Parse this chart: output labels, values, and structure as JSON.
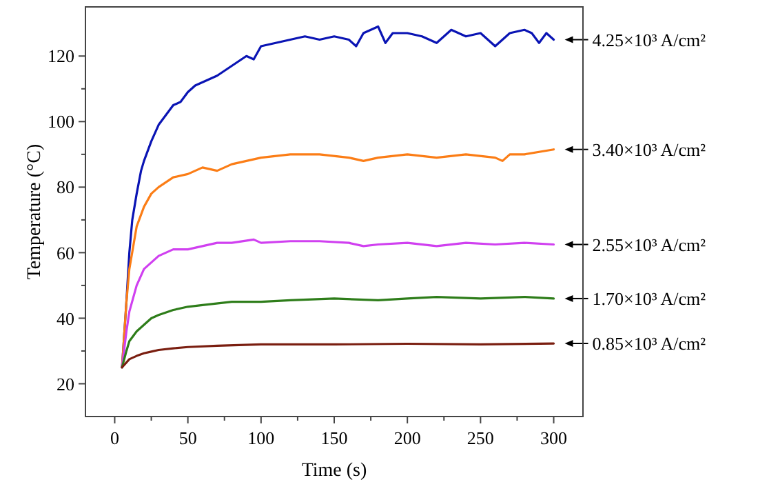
{
  "chart_data": {
    "type": "line",
    "xlabel": "Time (s)",
    "ylabel": "Temperature (°C)",
    "xlim": [
      -20,
      320
    ],
    "ylim": [
      10,
      135
    ],
    "xticks": [
      0,
      50,
      100,
      150,
      200,
      250,
      300
    ],
    "yticks": [
      20,
      40,
      60,
      80,
      100,
      120
    ],
    "grid": false,
    "marker": "none",
    "line_style": "solid",
    "series": [
      {
        "name": "4.25×10³ A/cm²",
        "color": "#0a14b4",
        "x": [
          5,
          8,
          10,
          12,
          15,
          18,
          20,
          25,
          30,
          35,
          40,
          45,
          50,
          55,
          60,
          70,
          80,
          90,
          95,
          100,
          110,
          120,
          130,
          140,
          150,
          160,
          165,
          170,
          180,
          185,
          190,
          200,
          210,
          220,
          230,
          240,
          250,
          260,
          270,
          280,
          285,
          290,
          295,
          300
        ],
        "values": [
          25,
          45,
          60,
          70,
          78,
          85,
          88,
          94,
          99,
          102,
          105,
          106,
          109,
          111,
          112,
          114,
          117,
          120,
          119,
          123,
          124,
          125,
          126,
          125,
          126,
          125,
          123,
          127,
          129,
          124,
          127,
          127,
          126,
          124,
          128,
          126,
          127,
          123,
          127,
          128,
          127,
          124,
          127,
          125
        ]
      },
      {
        "name": "3.40×10³ A/cm²",
        "color": "#fb7d16",
        "x": [
          5,
          8,
          10,
          15,
          20,
          25,
          30,
          40,
          50,
          60,
          70,
          80,
          90,
          100,
          120,
          140,
          160,
          170,
          180,
          200,
          220,
          240,
          260,
          265,
          270,
          280,
          300
        ],
        "values": [
          25,
          45,
          55,
          68,
          74,
          78,
          80,
          83,
          84,
          86,
          85,
          87,
          88,
          89,
          90,
          90,
          89,
          88,
          89,
          90,
          89,
          90,
          89,
          88,
          90,
          90,
          91.5
        ]
      },
      {
        "name": "2.55×10³ A/cm²",
        "color": "#d040f0",
        "x": [
          5,
          8,
          10,
          15,
          20,
          25,
          30,
          40,
          50,
          60,
          70,
          80,
          95,
          100,
          120,
          140,
          160,
          170,
          180,
          200,
          220,
          240,
          260,
          280,
          300
        ],
        "values": [
          25,
          36,
          42,
          50,
          55,
          57,
          59,
          61,
          61,
          62,
          63,
          63,
          64,
          63,
          63.5,
          63.5,
          63,
          62,
          62.5,
          63,
          62,
          63,
          62.5,
          63,
          62.5
        ]
      },
      {
        "name": "1.70×10³ A/cm²",
        "color": "#2e7d1a",
        "x": [
          5,
          8,
          10,
          15,
          20,
          25,
          30,
          40,
          50,
          60,
          80,
          100,
          120,
          150,
          180,
          200,
          220,
          250,
          280,
          300
        ],
        "values": [
          25,
          30,
          33,
          36,
          38,
          40,
          41,
          42.5,
          43.5,
          44,
          45,
          45,
          45.5,
          46,
          45.5,
          46,
          46.5,
          46,
          46.5,
          46
        ]
      },
      {
        "name": "0.85×10³ A/cm²",
        "color": "#7a1e10",
        "x": [
          5,
          10,
          15,
          20,
          25,
          30,
          40,
          50,
          70,
          100,
          150,
          200,
          250,
          300
        ],
        "values": [
          25,
          27.5,
          28.5,
          29.3,
          29.8,
          30.3,
          30.8,
          31.2,
          31.6,
          32,
          32,
          32.2,
          32,
          32.3
        ]
      }
    ]
  }
}
